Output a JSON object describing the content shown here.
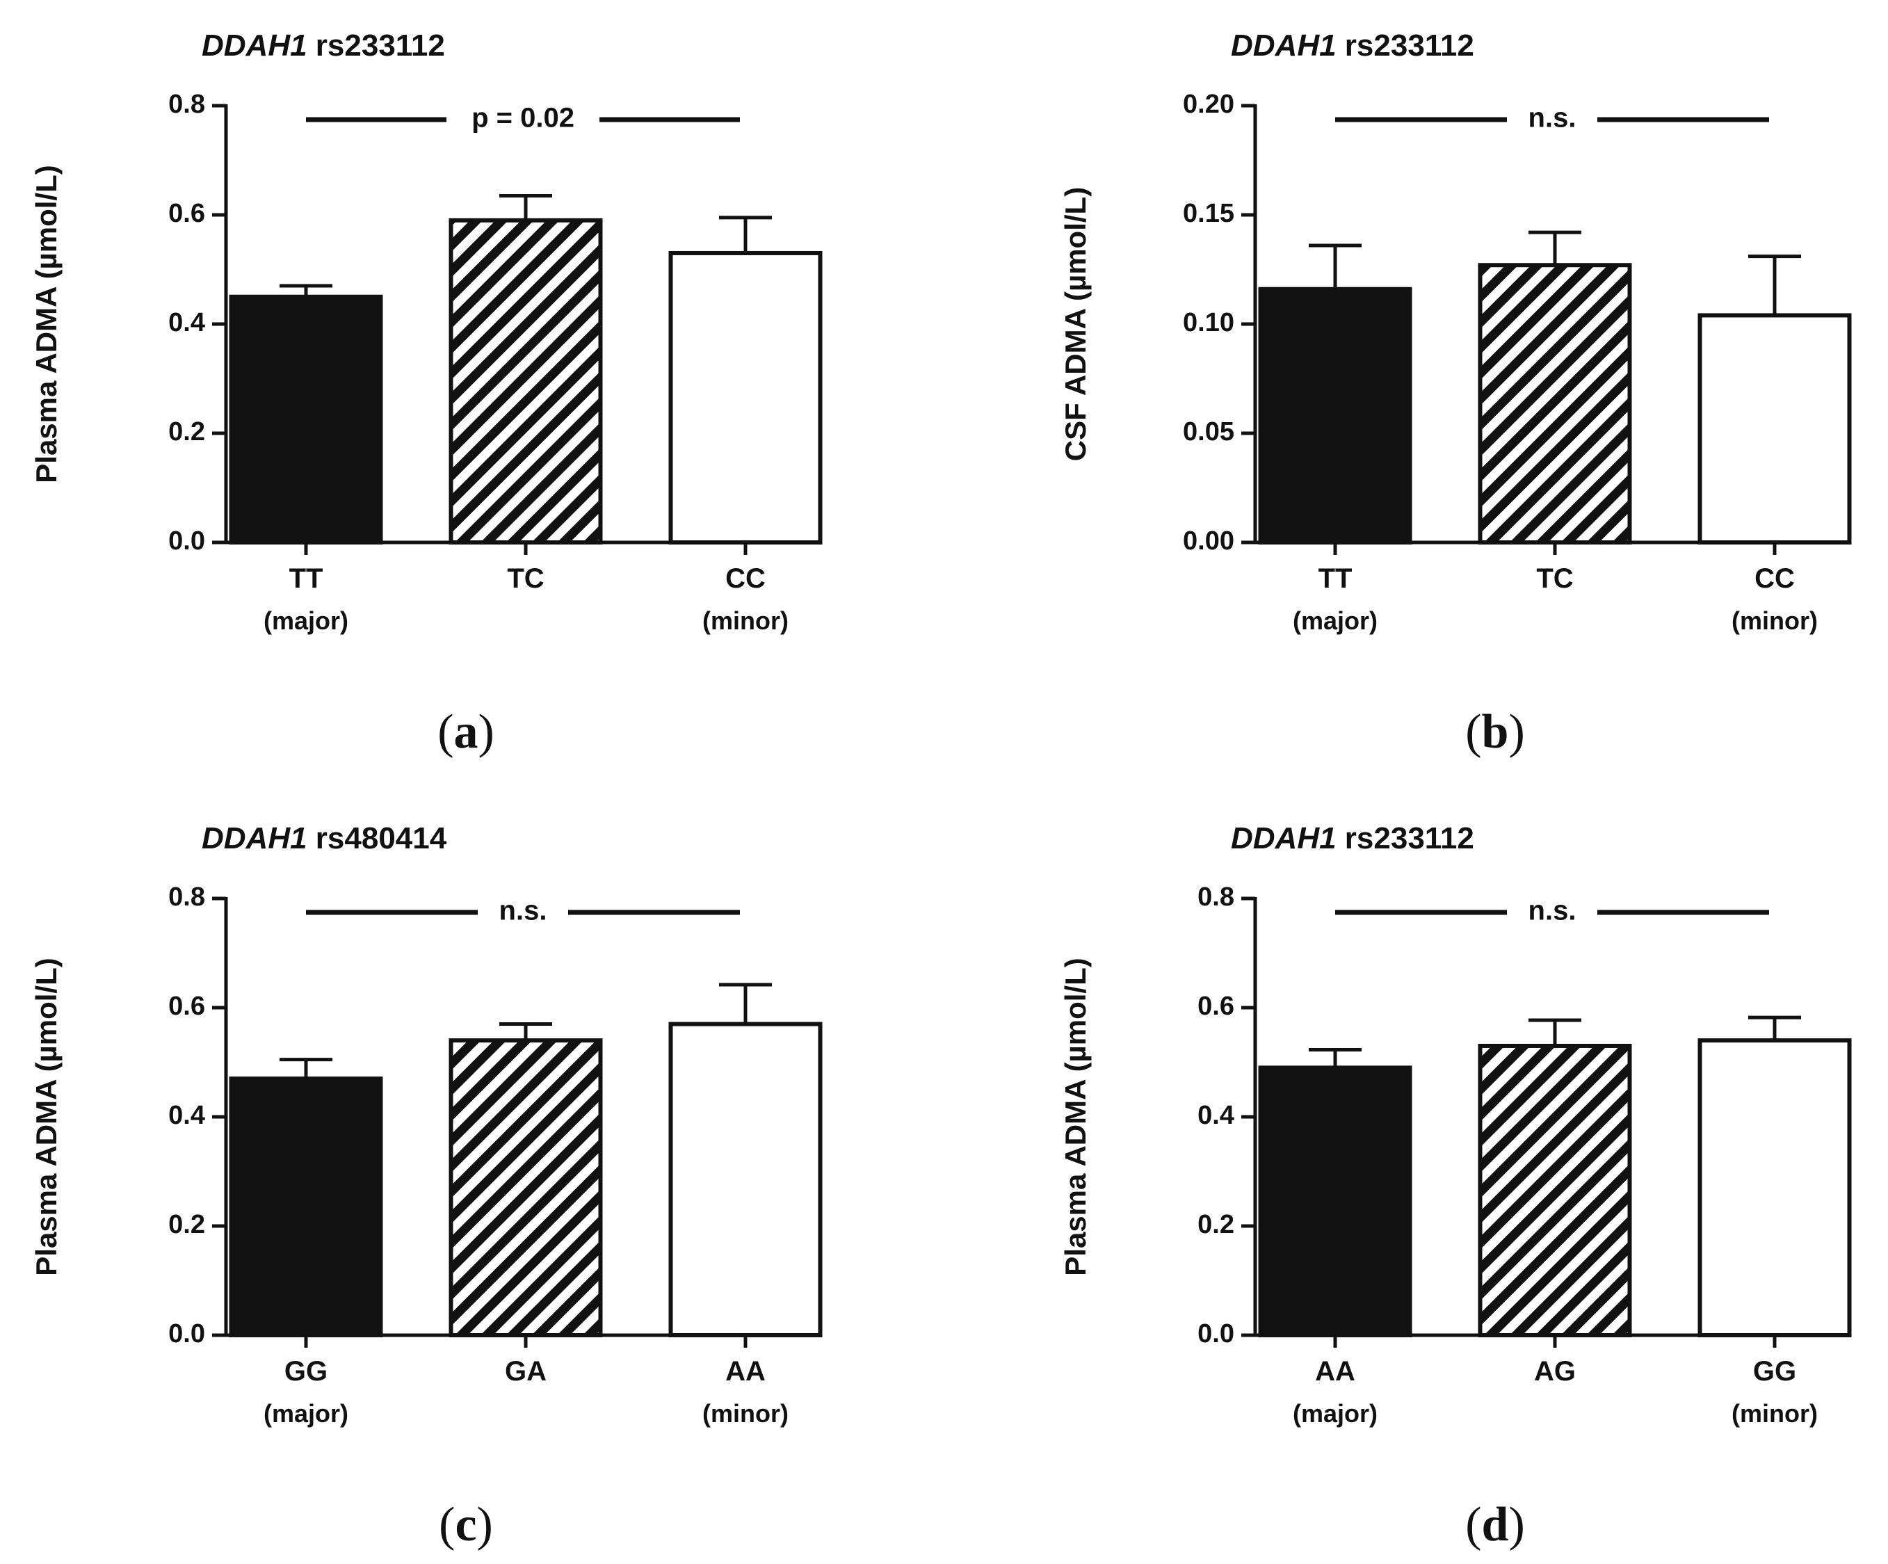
{
  "chart_data": [
    {
      "type": "bar",
      "panel_label": "a",
      "title_gene": "DDAH1",
      "title_snp": "rs233112",
      "ylabel": "Plasma ADMA (µmol/L)",
      "ylim": [
        0,
        0.8
      ],
      "yticks": [
        "0.0",
        "0.2",
        "0.4",
        "0.6",
        "0.8"
      ],
      "categories": [
        "TT",
        "TC",
        "CC"
      ],
      "category_sublabels": [
        "(major)",
        "",
        "(minor)"
      ],
      "values": [
        0.45,
        0.59,
        0.53
      ],
      "errors": [
        0.02,
        0.045,
        0.065
      ],
      "fills": [
        "solid",
        "hatched",
        "open"
      ],
      "significance": "p = 0.02"
    },
    {
      "type": "bar",
      "panel_label": "b",
      "title_gene": "DDAH1",
      "title_snp": "rs233112",
      "ylabel": "CSF ADMA (µmol/L)",
      "ylim": [
        0,
        0.2
      ],
      "yticks": [
        "0.00",
        "0.05",
        "0.10",
        "0.15",
        "0.20"
      ],
      "categories": [
        "TT",
        "TC",
        "CC"
      ],
      "category_sublabels": [
        "(major)",
        "",
        "(minor)"
      ],
      "values": [
        0.116,
        0.127,
        0.104
      ],
      "errors": [
        0.02,
        0.015,
        0.027
      ],
      "fills": [
        "solid",
        "hatched",
        "open"
      ],
      "significance": "n.s."
    },
    {
      "type": "bar",
      "panel_label": "c",
      "title_gene": "DDAH1",
      "title_snp": "rs480414",
      "ylabel": "Plasma ADMA (µmol/L)",
      "ylim": [
        0,
        0.8
      ],
      "yticks": [
        "0.0",
        "0.2",
        "0.4",
        "0.6",
        "0.8"
      ],
      "categories": [
        "GG",
        "GA",
        "AA"
      ],
      "category_sublabels": [
        "(major)",
        "",
        "(minor)"
      ],
      "values": [
        0.47,
        0.54,
        0.57
      ],
      "errors": [
        0.035,
        0.03,
        0.072
      ],
      "fills": [
        "solid",
        "hatched",
        "open"
      ],
      "significance": "n.s."
    },
    {
      "type": "bar",
      "panel_label": "d",
      "title_gene": "DDAH1",
      "title_snp": "rs233112",
      "ylabel": "Plasma ADMA (µmol/L)",
      "ylim": [
        0,
        0.8
      ],
      "yticks": [
        "0.0",
        "0.2",
        "0.4",
        "0.6",
        "0.8"
      ],
      "categories": [
        "AA",
        "AG",
        "GG"
      ],
      "category_sublabels": [
        "(major)",
        "",
        "(minor)"
      ],
      "values": [
        0.49,
        0.53,
        0.54
      ],
      "errors": [
        0.033,
        0.047,
        0.042
      ],
      "fills": [
        "solid",
        "hatched",
        "open"
      ],
      "significance": "n.s."
    }
  ]
}
